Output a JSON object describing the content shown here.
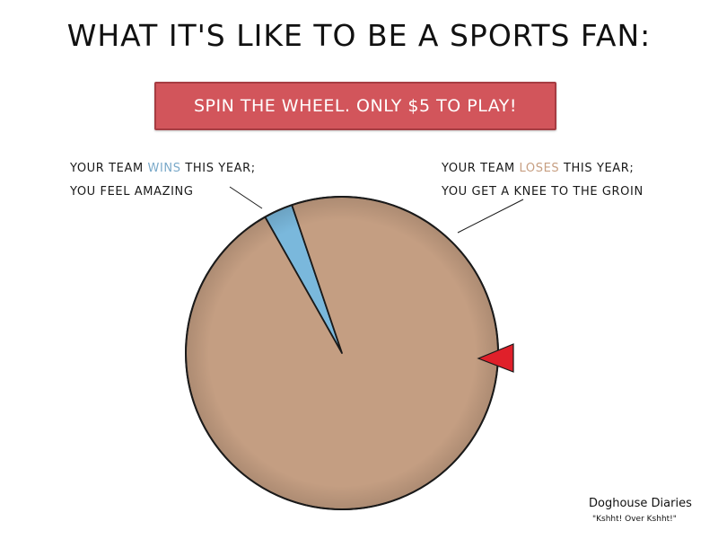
{
  "title": "WHAT IT'S LIKE TO BE A SPORTS FAN:",
  "banner": {
    "text": "SPIN THE WHEEL. ONLY $5 TO PLAY!"
  },
  "labels": {
    "wins": {
      "line1_pre": "YOUR TEAM ",
      "line1_highlight": "WINS",
      "line1_post": " THIS YEAR;",
      "line2": "YOU FEEL AMAZING"
    },
    "loses": {
      "line1_pre": "YOUR TEAM ",
      "line1_highlight": "LOSES",
      "line1_post": " THIS YEAR;",
      "line2": "YOU GET A KNEE TO THE GROIN"
    }
  },
  "chart_data": {
    "type": "pie",
    "title": "",
    "slices": [
      {
        "name": "wins",
        "value": 3,
        "color": "#7ab8dc"
      },
      {
        "name": "loses",
        "value": 97,
        "color": "#c49e82"
      }
    ],
    "start_angle_deg": -29.5,
    "pointer": {
      "color": "#e0202a",
      "position": "right"
    }
  },
  "credit": {
    "name": "Doghouse Diaries",
    "tagline": "\"Kshht! Over Kshht!\""
  }
}
